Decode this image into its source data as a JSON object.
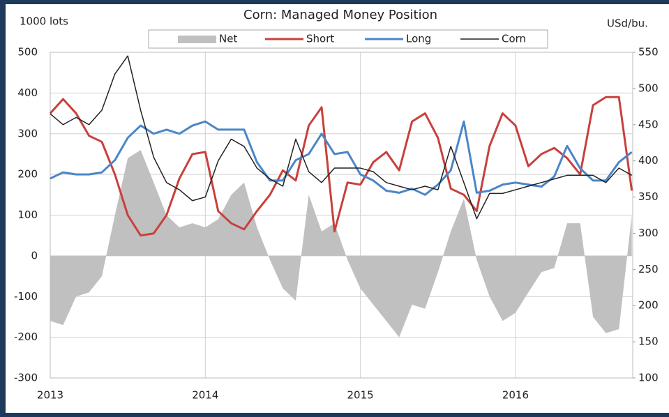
{
  "chart_data": {
    "type": "line",
    "title": "Corn: Managed Money Position",
    "ylabel": "1000 lots",
    "y2label": "USd/bu.",
    "x": [
      2013,
      2013.083,
      2013.167,
      2013.25,
      2013.333,
      2013.417,
      2013.5,
      2013.583,
      2013.667,
      2013.75,
      2013.833,
      2013.917,
      2014,
      2014.083,
      2014.167,
      2014.25,
      2014.333,
      2014.417,
      2014.5,
      2014.583,
      2014.667,
      2014.75,
      2014.833,
      2014.917,
      2015,
      2015.083,
      2015.167,
      2015.25,
      2015.333,
      2015.417,
      2015.5,
      2015.583,
      2015.667,
      2015.75,
      2015.833,
      2015.917,
      2016,
      2016.083,
      2016.167,
      2016.25,
      2016.333,
      2016.417,
      2016.5,
      2016.583,
      2016.667,
      2016.75
    ],
    "xlim": [
      2013,
      2016.756
    ],
    "xticks": [
      2013,
      2014,
      2015,
      2016
    ],
    "ylim": [
      -300,
      500
    ],
    "yticks": [
      -300,
      -200,
      -100,
      0,
      100,
      200,
      300,
      400,
      500
    ],
    "y2lim": [
      100,
      550
    ],
    "y2ticks": [
      100,
      150,
      200,
      250,
      300,
      350,
      400,
      450,
      500,
      550
    ],
    "grid": true,
    "series": [
      {
        "name": "Net",
        "kind": "area",
        "color": "#c0c0c0",
        "values": [
          -160,
          -170,
          -100,
          -90,
          -50,
          100,
          240,
          260,
          180,
          100,
          70,
          80,
          70,
          90,
          150,
          180,
          70,
          -10,
          -80,
          -110,
          150,
          60,
          80,
          -10,
          -80,
          -120,
          -160,
          -200,
          -120,
          -130,
          -40,
          60,
          140,
          -10,
          -100,
          -160,
          -140,
          -90,
          -40,
          -30,
          80,
          80,
          -150,
          -190,
          -180,
          100
        ]
      },
      {
        "name": "Short",
        "color": "#c8403c",
        "values": [
          350,
          385,
          350,
          295,
          280,
          200,
          100,
          50,
          55,
          100,
          190,
          250,
          255,
          110,
          80,
          65,
          110,
          150,
          210,
          185,
          320,
          365,
          60,
          180,
          175,
          230,
          255,
          210,
          330,
          350,
          290,
          165,
          150,
          110,
          270,
          350,
          320,
          220,
          250,
          265,
          240,
          200,
          370,
          390,
          390,
          160
        ]
      },
      {
        "name": "Long",
        "color": "#4a86c8",
        "values": [
          190,
          205,
          200,
          200,
          205,
          235,
          290,
          320,
          300,
          310,
          300,
          320,
          330,
          310,
          310,
          310,
          230,
          185,
          185,
          235,
          250,
          300,
          250,
          255,
          200,
          185,
          160,
          155,
          165,
          150,
          175,
          210,
          330,
          155,
          160,
          175,
          180,
          175,
          170,
          195,
          270,
          215,
          185,
          185,
          230,
          255
        ]
      },
      {
        "name": "Corn",
        "color": "#222222",
        "axis": "y2",
        "values": [
          465,
          450,
          460,
          450,
          470,
          520,
          545,
          470,
          405,
          370,
          360,
          345,
          350,
          400,
          430,
          420,
          390,
          375,
          365,
          430,
          385,
          370,
          390,
          390,
          390,
          385,
          370,
          365,
          360,
          365,
          360,
          420,
          370,
          320,
          355,
          355,
          360,
          365,
          370,
          375,
          380,
          380,
          380,
          370,
          390,
          380
        ]
      }
    ]
  }
}
